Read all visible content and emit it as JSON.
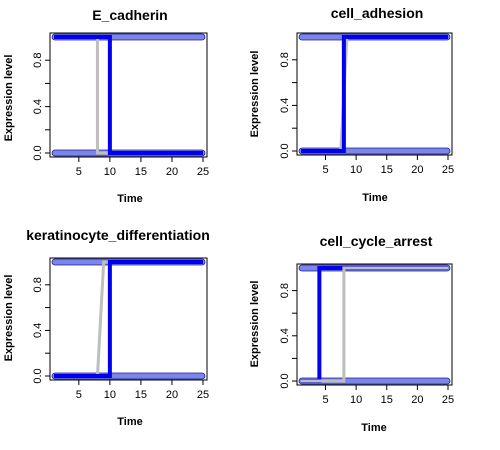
{
  "figure": {
    "panels": [
      {
        "title": "E_cadherin",
        "xlabel": "Time",
        "ylabel": "Expression level",
        "xticks": [
          "5",
          "10",
          "15",
          "20",
          "25"
        ],
        "yticks": [
          "0.0",
          "0.4",
          "0.8"
        ]
      },
      {
        "title": "cell_adhesion",
        "xlabel": "Time",
        "ylabel": "Expression level",
        "xticks": [
          "5",
          "10",
          "15",
          "20",
          "25"
        ],
        "yticks": [
          "0.0",
          "0.4",
          "0.8"
        ]
      },
      {
        "title": "keratinocyte_differentiation",
        "xlabel": "Time",
        "ylabel": "Expression level",
        "xticks": [
          "5",
          "10",
          "15",
          "20",
          "25"
        ],
        "yticks": [
          "0.0",
          "0.4",
          "0.8"
        ]
      },
      {
        "title": "cell_cycle_arrest",
        "xlabel": "Time",
        "ylabel": "Expression level",
        "xticks": [
          "5",
          "10",
          "15",
          "20",
          "25"
        ],
        "yticks": [
          "0.0",
          "0.4",
          "0.8"
        ]
      }
    ]
  },
  "colors": {
    "blue_series": "#0000ee",
    "blue_band_fill": "#7b86e6",
    "blue_band_outline": "#1a1aa0",
    "gray_series": "#bebebe"
  },
  "chart_data": [
    {
      "type": "line",
      "title": "E_cadherin",
      "xlabel": "Time",
      "ylabel": "Expression level",
      "xlim": [
        1,
        25
      ],
      "ylim": [
        0,
        1
      ],
      "series": [
        {
          "color": "band",
          "x": [
            1,
            25
          ],
          "y": [
            1,
            0
          ]
        },
        {
          "color": "gray",
          "x": [
            1,
            8,
            8,
            25
          ],
          "y": [
            1,
            1,
            0,
            0
          ]
        },
        {
          "color": "blue",
          "x": [
            1,
            10,
            10,
            25
          ],
          "y": [
            1,
            1,
            0,
            0
          ]
        }
      ]
    },
    {
      "type": "line",
      "title": "cell_adhesion",
      "xlabel": "Time",
      "ylabel": "Expression level",
      "xlim": [
        1,
        25
      ],
      "ylim": [
        0,
        1
      ],
      "series": [
        {
          "color": "band",
          "x": [
            1,
            25
          ],
          "y": [
            0,
            1
          ]
        },
        {
          "color": "gray",
          "x": [
            1,
            7.5,
            8.5,
            25
          ],
          "y": [
            0,
            0,
            1,
            1
          ]
        },
        {
          "color": "blue",
          "x": [
            1,
            8,
            8,
            25
          ],
          "y": [
            0,
            0,
            1,
            1
          ]
        }
      ]
    },
    {
      "type": "line",
      "title": "keratinocyte_differentiation",
      "xlabel": "Time",
      "ylabel": "Expression level",
      "xlim": [
        1,
        25
      ],
      "ylim": [
        0,
        1
      ],
      "series": [
        {
          "color": "band",
          "x": [
            1,
            25
          ],
          "y": [
            0,
            1
          ]
        },
        {
          "color": "gray",
          "x": [
            1,
            8,
            9,
            25
          ],
          "y": [
            0,
            0,
            1,
            1
          ]
        },
        {
          "color": "blue",
          "x": [
            1,
            10,
            10,
            25
          ],
          "y": [
            0,
            0,
            1,
            1
          ]
        }
      ]
    },
    {
      "type": "line",
      "title": "cell_cycle_arrest",
      "xlabel": "Time",
      "ylabel": "Expression level",
      "xlim": [
        1,
        25
      ],
      "ylim": [
        0,
        1
      ],
      "series": [
        {
          "color": "band",
          "x": [
            1,
            25
          ],
          "y": [
            0,
            1
          ]
        },
        {
          "color": "blue",
          "x": [
            1,
            4,
            4,
            25
          ],
          "y": [
            0,
            0,
            1,
            1
          ]
        },
        {
          "color": "gray",
          "x": [
            1,
            8,
            8,
            25
          ],
          "y": [
            0,
            0,
            1,
            1
          ]
        }
      ]
    }
  ]
}
